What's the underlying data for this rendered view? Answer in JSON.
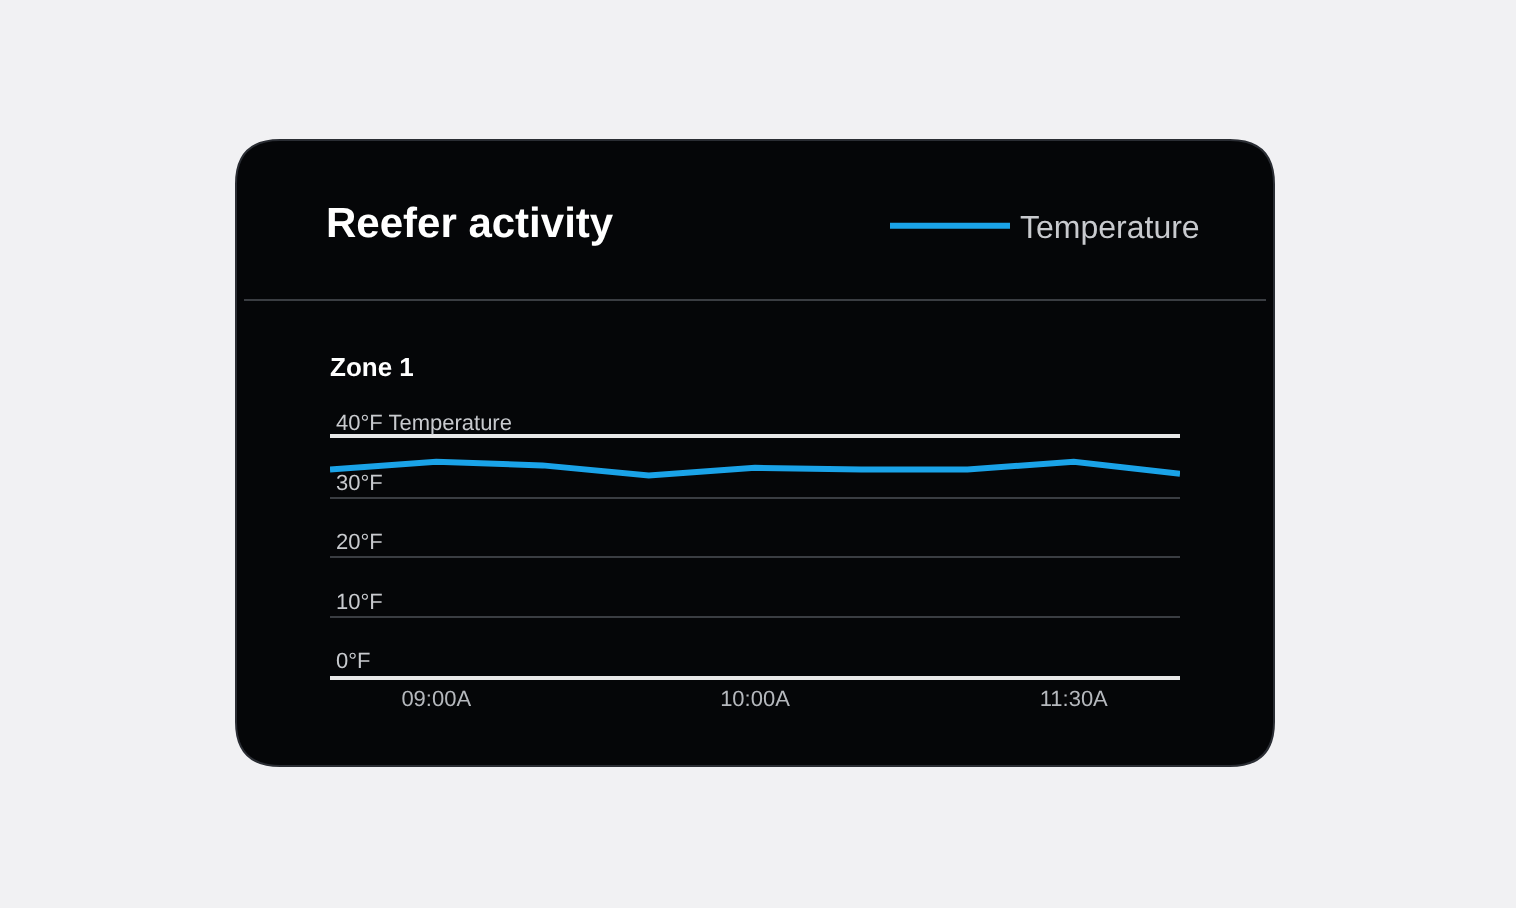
{
  "chart_data": {
    "type": "line",
    "title": "Reefer activity",
    "subtitle": "Zone 1",
    "categories": [
      null,
      "09:00A",
      null,
      null,
      "10:00A",
      null,
      null,
      "11:30A",
      null
    ],
    "series": [
      {
        "name": "Temperature",
        "color": "#1aa3e8",
        "values": [
          34.7,
          36.0,
          35.4,
          33.7,
          35.0,
          34.7,
          34.7,
          36.0,
          34.0
        ]
      }
    ],
    "ylim": [
      0,
      40
    ],
    "yticks": [
      {
        "value": 0,
        "label": "0°F"
      },
      {
        "value": 10,
        "label": "10°F"
      },
      {
        "value": 20,
        "label": "20°F"
      },
      {
        "value": 30,
        "label": "30°F"
      },
      {
        "value": 40,
        "label": "40°F Temperature"
      }
    ],
    "grid": "y",
    "legend": "top right",
    "marker": "none",
    "line_style": "solid"
  }
}
